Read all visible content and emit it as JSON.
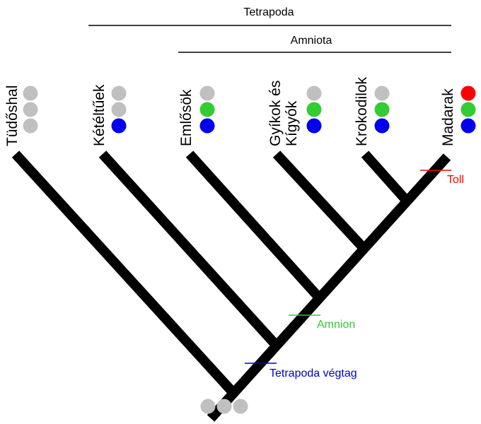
{
  "groups": {
    "tetrapoda": "Tetrapoda",
    "amniota": "Amniota"
  },
  "taxa": [
    {
      "label": "Tüdőshal",
      "dots": [
        "gray",
        "gray",
        "gray"
      ]
    },
    {
      "label": "Kétéltűek",
      "dots": [
        "gray",
        "gray",
        "blue"
      ]
    },
    {
      "label": "Emlősök",
      "dots": [
        "gray",
        "green",
        "blue"
      ]
    },
    {
      "label_lines": [
        "Gyíkok és",
        "Kígyók"
      ],
      "dots": [
        "gray",
        "green",
        "blue"
      ]
    },
    {
      "label": "Krokodilok",
      "dots": [
        "gray",
        "green",
        "blue"
      ]
    },
    {
      "label": "Madarak",
      "dots": [
        "red",
        "green",
        "blue"
      ]
    }
  ],
  "root_dots": [
    "gray",
    "gray",
    "gray"
  ],
  "traits": {
    "toll": "Toll",
    "amnion": "Amnion",
    "tetrapoda_vegtag": "Tetrapoda végtag"
  },
  "colors": {
    "gray": "#c0c0c0",
    "green": "#33cc33",
    "blue": "#0000ee",
    "red": "#ff0000",
    "trait_red": "#ff0000",
    "trait_green": "#33cc33",
    "trait_blue": "#0000cc"
  }
}
